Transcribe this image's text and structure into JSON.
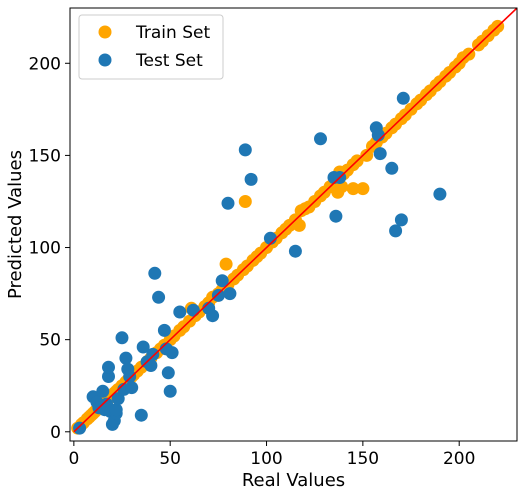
{
  "chart_data": {
    "type": "scatter",
    "xlabel": "Real Values",
    "ylabel": "Predicted Values",
    "xlim": [
      -2,
      230
    ],
    "ylim": [
      -5,
      230
    ],
    "xticks": [
      0,
      50,
      100,
      150,
      200
    ],
    "yticks": [
      0,
      50,
      100,
      150,
      200
    ],
    "grid": false,
    "legend_position": "top-left",
    "reference_line": {
      "color": "#ff0000",
      "from": [
        0,
        0
      ],
      "to": [
        230,
        230
      ]
    },
    "series": [
      {
        "name": "Train Set",
        "color": "#ffa500",
        "points": [
          [
            2,
            2
          ],
          [
            4,
            4
          ],
          [
            5,
            5
          ],
          [
            7,
            7
          ],
          [
            8,
            8
          ],
          [
            9,
            9
          ],
          [
            10,
            10
          ],
          [
            11,
            11
          ],
          [
            12,
            12
          ],
          [
            13,
            13
          ],
          [
            15,
            15
          ],
          [
            16,
            16
          ],
          [
            17,
            17
          ],
          [
            18,
            18
          ],
          [
            20,
            20
          ],
          [
            21,
            21
          ],
          [
            22,
            22
          ],
          [
            23,
            23
          ],
          [
            25,
            25
          ],
          [
            27,
            27
          ],
          [
            28,
            28
          ],
          [
            30,
            30
          ],
          [
            31,
            31
          ],
          [
            33,
            33
          ],
          [
            35,
            35
          ],
          [
            38,
            38
          ],
          [
            40,
            40
          ],
          [
            43,
            43
          ],
          [
            45,
            45
          ],
          [
            47,
            47
          ],
          [
            50,
            50
          ],
          [
            52,
            52
          ],
          [
            55,
            55
          ],
          [
            57,
            57
          ],
          [
            60,
            60
          ],
          [
            61,
            67
          ],
          [
            63,
            63
          ],
          [
            65,
            65
          ],
          [
            68,
            68
          ],
          [
            70,
            70
          ],
          [
            72,
            73
          ],
          [
            75,
            75
          ],
          [
            77,
            77
          ],
          [
            79,
            91
          ],
          [
            80,
            80
          ],
          [
            83,
            83
          ],
          [
            85,
            85
          ],
          [
            88,
            88
          ],
          [
            89,
            125
          ],
          [
            90,
            90
          ],
          [
            93,
            93
          ],
          [
            95,
            95
          ],
          [
            97,
            97
          ],
          [
            100,
            100
          ],
          [
            103,
            103
          ],
          [
            105,
            105
          ],
          [
            108,
            108
          ],
          [
            110,
            110
          ],
          [
            112,
            112
          ],
          [
            115,
            115
          ],
          [
            117,
            112
          ],
          [
            118,
            120
          ],
          [
            120,
            121
          ],
          [
            122,
            122
          ],
          [
            125,
            125
          ],
          [
            128,
            128
          ],
          [
            130,
            130
          ],
          [
            133,
            133
          ],
          [
            135,
            135
          ],
          [
            137,
            137
          ],
          [
            137,
            130
          ],
          [
            138,
            141
          ],
          [
            139,
            133
          ],
          [
            140,
            140
          ],
          [
            142,
            142
          ],
          [
            145,
            145
          ],
          [
            145,
            132
          ],
          [
            147,
            147
          ],
          [
            150,
            132
          ],
          [
            152,
            150
          ],
          [
            155,
            155
          ],
          [
            157,
            157
          ],
          [
            160,
            160
          ],
          [
            162,
            162
          ],
          [
            165,
            165
          ],
          [
            167,
            167
          ],
          [
            170,
            170
          ],
          [
            172,
            172
          ],
          [
            175,
            175
          ],
          [
            178,
            178
          ],
          [
            180,
            180
          ],
          [
            183,
            183
          ],
          [
            185,
            185
          ],
          [
            188,
            188
          ],
          [
            190,
            190
          ],
          [
            193,
            193
          ],
          [
            195,
            195
          ],
          [
            198,
            198
          ],
          [
            200,
            200
          ],
          [
            202,
            203
          ],
          [
            205,
            205
          ],
          [
            210,
            210
          ],
          [
            212,
            212
          ],
          [
            215,
            215
          ],
          [
            218,
            218
          ],
          [
            220,
            220
          ]
        ]
      },
      {
        "name": "Test Set",
        "color": "#1f77b4",
        "points": [
          [
            3,
            2
          ],
          [
            10,
            19
          ],
          [
            12,
            16
          ],
          [
            13,
            13
          ],
          [
            15,
            22
          ],
          [
            16,
            12
          ],
          [
            17,
            15
          ],
          [
            18,
            30
          ],
          [
            18,
            35
          ],
          [
            19,
            11
          ],
          [
            20,
            4
          ],
          [
            21,
            6
          ],
          [
            22,
            10
          ],
          [
            22,
            12
          ],
          [
            23,
            18
          ],
          [
            25,
            51
          ],
          [
            26,
            23
          ],
          [
            27,
            40
          ],
          [
            28,
            34
          ],
          [
            29,
            30
          ],
          [
            30,
            24
          ],
          [
            35,
            9
          ],
          [
            36,
            46
          ],
          [
            38,
            38
          ],
          [
            40,
            36
          ],
          [
            41,
            42
          ],
          [
            42,
            86
          ],
          [
            44,
            73
          ],
          [
            47,
            55
          ],
          [
            48,
            45
          ],
          [
            49,
            32
          ],
          [
            50,
            22
          ],
          [
            51,
            43
          ],
          [
            55,
            65
          ],
          [
            62,
            66
          ],
          [
            70,
            67
          ],
          [
            72,
            63
          ],
          [
            75,
            74
          ],
          [
            77,
            82
          ],
          [
            80,
            124
          ],
          [
            81,
            75
          ],
          [
            89,
            153
          ],
          [
            92,
            137
          ],
          [
            102,
            105
          ],
          [
            115,
            98
          ],
          [
            128,
            159
          ],
          [
            135,
            138
          ],
          [
            136,
            117
          ],
          [
            138,
            138
          ],
          [
            157,
            165
          ],
          [
            158,
            161
          ],
          [
            159,
            151
          ],
          [
            165,
            143
          ],
          [
            167,
            109
          ],
          [
            170,
            115
          ],
          [
            171,
            181
          ],
          [
            190,
            129
          ]
        ]
      }
    ]
  }
}
